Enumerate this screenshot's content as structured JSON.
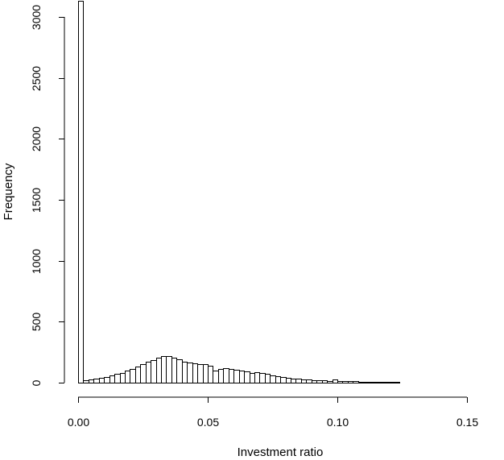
{
  "chart_data": {
    "type": "bar",
    "subtype": "histogram",
    "title": "",
    "xlabel": "Investment ratio",
    "ylabel": "Frequency",
    "xlim": [
      0,
      0.165
    ],
    "ylim": [
      0,
      3130
    ],
    "x_ticks": [
      0.0,
      0.05,
      0.1,
      0.15
    ],
    "x_tick_labels": [
      "0.00",
      "0.05",
      "0.10",
      "0.15"
    ],
    "y_ticks": [
      0,
      500,
      1000,
      1500,
      2000,
      2500,
      3000
    ],
    "y_tick_labels": [
      "0",
      "500",
      "1000",
      "1500",
      "2000",
      "2500",
      "3000"
    ],
    "bin_width": 0.002,
    "bin_start": 0.0,
    "values": [
      3130,
      20,
      25,
      30,
      38,
      45,
      60,
      70,
      82,
      100,
      115,
      135,
      155,
      170,
      185,
      205,
      215,
      215,
      205,
      190,
      175,
      165,
      160,
      150,
      150,
      140,
      100,
      115,
      120,
      115,
      108,
      100,
      95,
      80,
      88,
      80,
      70,
      60,
      55,
      48,
      40,
      35,
      30,
      28,
      25,
      20,
      20,
      18,
      15,
      25,
      15,
      12,
      12,
      10,
      8,
      7,
      6,
      6,
      5,
      5,
      4,
      4,
      3,
      3,
      2,
      2,
      2,
      2,
      2,
      1,
      1,
      1,
      1,
      1,
      1,
      1,
      1,
      1,
      1,
      1,
      1,
      1
    ],
    "grid": false,
    "legend": "none"
  }
}
